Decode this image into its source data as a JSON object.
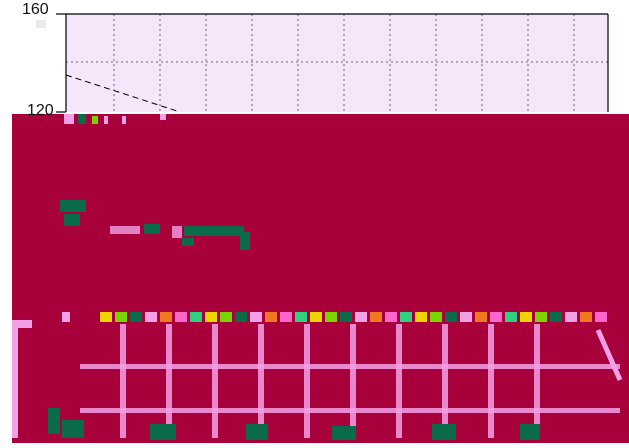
{
  "y_axis": {
    "tick_labels": [
      "160",
      "120"
    ]
  },
  "colors": {
    "plot_background": "#f6e6fa",
    "corruption_band": "#a8003a",
    "grid": "#666666",
    "axis": "#000000",
    "glitch_green": "#0a6b4a",
    "glitch_pink": "#f4a0e8",
    "glitch_yellow": "#f0d400",
    "glitch_lime": "#7ad400"
  }
}
